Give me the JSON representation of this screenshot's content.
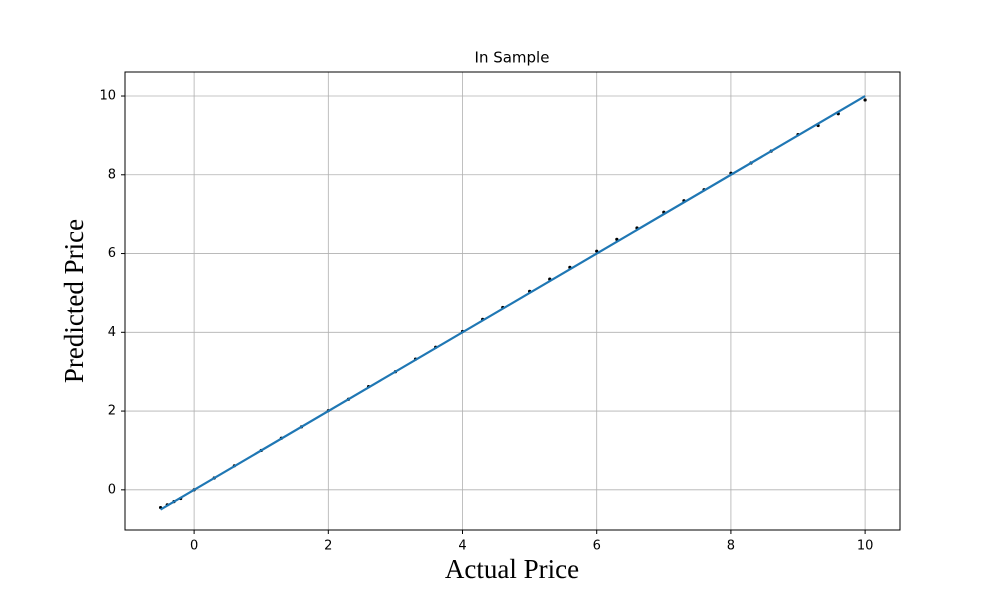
{
  "chart_data": {
    "type": "scatter",
    "title": "In Sample",
    "x_label": "Actual Price",
    "y_label": "Predicted Price",
    "points": {
      "color": "#000000",
      "x": [
        -0.5,
        -0.4,
        -0.3,
        -0.2,
        0,
        0.3,
        0.6,
        1,
        1.3,
        1.6,
        2,
        2.3,
        2.6,
        3,
        3.3,
        3.6,
        4,
        4.3,
        4.6,
        5,
        5.3,
        5.6,
        6,
        6.3,
        6.6,
        7,
        7.3,
        7.6,
        8,
        8.3,
        8.6,
        9,
        9.3,
        9.6,
        10
      ],
      "y": [
        -0.45,
        -0.38,
        -0.3,
        -0.22,
        0,
        0.3,
        0.61,
        1.0,
        1.31,
        1.6,
        2.01,
        2.3,
        2.62,
        3.0,
        3.32,
        3.62,
        4.02,
        4.33,
        4.63,
        5.04,
        5.35,
        5.65,
        6.06,
        6.36,
        6.65,
        7.05,
        7.34,
        7.62,
        8.04,
        8.3,
        8.6,
        9.02,
        9.25,
        9.55,
        9.9
      ]
    },
    "fit_line": {
      "color": "#1f77b4",
      "x": [
        -0.5,
        10
      ],
      "y": [
        -0.5,
        10
      ]
    },
    "xlim": [
      -1.03,
      10.52
    ],
    "ylim": [
      -1.02,
      10.61
    ],
    "xticks": [
      0,
      2,
      4,
      6,
      8,
      10
    ],
    "yticks": [
      0,
      2,
      4,
      6,
      8,
      10
    ],
    "grid": true
  }
}
